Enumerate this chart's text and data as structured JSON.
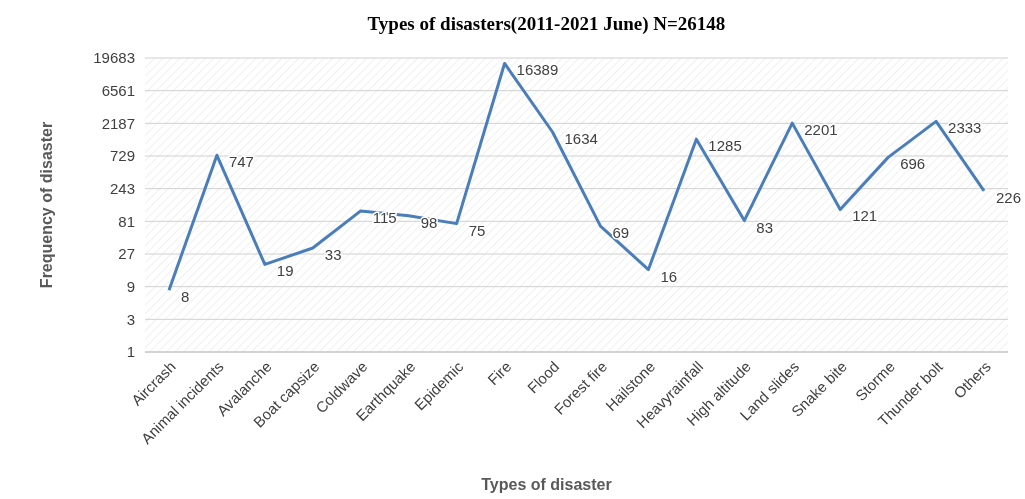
{
  "chart_data": {
    "type": "line",
    "title": "Types of disasters(2011-2021 June) N=26148",
    "xlabel": "Types of disaster",
    "ylabel": "Frequency of disaster",
    "categories": [
      "Aircrash",
      "Animal incidents",
      "Avalanche",
      "Boat capsize",
      "Coldwave",
      "Earthquake",
      "Epidemic",
      "Fire",
      "Flood",
      "Forest fire",
      "Hailstone",
      "Heavyrainfall",
      "High altitude",
      "Land slides",
      "Snake bite",
      "Storme",
      "Thunder bolt",
      "Others"
    ],
    "series": [
      {
        "color": "#4a7ebb",
        "values": [
          8,
          747,
          19,
          33,
          115,
          98,
          75,
          16389,
          1634,
          69,
          16,
          1285,
          83,
          2201,
          121,
          696,
          2333,
          226
        ]
      }
    ],
    "log": true,
    "ylim": [
      1,
      19683
    ],
    "yticks": [
      1,
      3,
      9,
      27,
      81,
      243,
      729,
      2187,
      6561,
      19683
    ],
    "grid": "y",
    "data_labels": true,
    "marker": "none",
    "line_style": "solid"
  }
}
